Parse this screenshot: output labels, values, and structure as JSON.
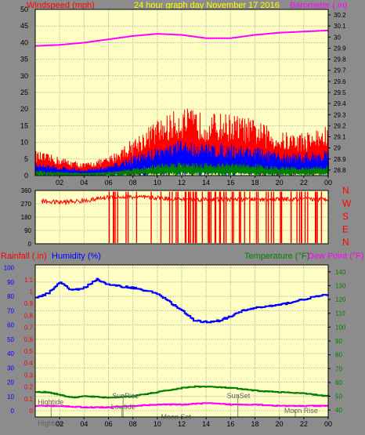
{
  "colors": {
    "background": "#8c8c8c",
    "plot_bg": "#ffffc4",
    "grid": "#b4b4b4",
    "windspeed": "#ff0000",
    "gust": "#0000ff",
    "wind_low": "#008000",
    "barometer": "#ff00ff",
    "wind_dir": "#ff0000",
    "humidity": "#0000ff",
    "temperature": "#008000",
    "dew_point": "#ff00ff",
    "header_title": "#ffff00"
  },
  "header": {
    "left_label": "Windspeed (mph)",
    "title": "24 hour graph day   November 17 2016",
    "right_label": "Barometer (.in)"
  },
  "panel3_header": {
    "rainfall_label": "Rainfall (.in)",
    "humidity_label": "Humidity (%)",
    "temperature_label": "Temperature (°F)",
    "dewpoint_label": "Dew Point (°F)"
  },
  "direction_letters": [
    "N",
    "W",
    "S",
    "E",
    "N"
  ],
  "x_ticks": [
    "02",
    "04",
    "06",
    "08",
    "10",
    "12",
    "14",
    "16",
    "18",
    "20",
    "22",
    "00"
  ],
  "events": {
    "hightide_1": "Hightide",
    "hightide_2": "Hightide",
    "sunrise": "SunRise",
    "lowtide": "Lowtide",
    "moonset": "Moon Set",
    "sunset": "SunSet",
    "moonrise": "Moon Rise"
  },
  "chart_data": [
    {
      "type": "line",
      "title": "24 hour graph day   November 17 2016",
      "x_range": [
        0,
        24
      ],
      "x_tick_labels": [
        "02",
        "04",
        "06",
        "08",
        "10",
        "12",
        "14",
        "16",
        "18",
        "20",
        "22",
        "00"
      ],
      "left_axis": {
        "label": "Windspeed (mph)",
        "range": [
          0,
          50
        ],
        "ticks": [
          0,
          5,
          10,
          15,
          20,
          25,
          30,
          35,
          40,
          45,
          50
        ]
      },
      "right_axis": {
        "label": "Barometer (.in)",
        "range": [
          28.75,
          30.25
        ],
        "ticks": [
          "28.8",
          "28.9",
          "29",
          "29.1",
          "29.2",
          "29.3",
          "29.4",
          "29.5",
          "29.6",
          "29.7",
          "29.8",
          "29.9",
          "30",
          "30.1",
          "30.2"
        ]
      },
      "series": [
        {
          "name": "Windspeed (mph)",
          "axis": "left",
          "color": "#ff0000",
          "x": [
            0,
            2,
            4,
            6,
            8,
            10,
            12,
            14,
            16,
            18,
            20,
            22,
            24
          ],
          "values": [
            4,
            3,
            2,
            3,
            6,
            9,
            11,
            10,
            10,
            9,
            7,
            7,
            8
          ]
        },
        {
          "name": "Barometer (.in)",
          "axis": "right",
          "color": "#ff00ff",
          "x": [
            0,
            2,
            4,
            6,
            8,
            10,
            12,
            14,
            16,
            18,
            20,
            22,
            24
          ],
          "values": [
            29.92,
            29.93,
            29.95,
            29.98,
            30.01,
            30.03,
            30.02,
            29.99,
            29.99,
            30.02,
            30.04,
            30.05,
            30.06
          ]
        }
      ],
      "grid": true
    },
    {
      "type": "scatter",
      "y_axis": {
        "range": [
          0,
          360
        ],
        "ticks": [
          0,
          45,
          90,
          135,
          180,
          225,
          270,
          315,
          360
        ]
      },
      "series": [
        {
          "name": "Wind direction",
          "color": "#ff0000",
          "x": [
            0,
            2,
            4,
            6,
            8,
            10,
            12,
            14,
            16,
            18,
            20,
            22,
            24
          ],
          "values": [
            290,
            280,
            290,
            315,
            315,
            310,
            300,
            300,
            300,
            300,
            300,
            300,
            300
          ]
        }
      ]
    },
    {
      "type": "line",
      "left_axis": {
        "label": "Humidity (%)",
        "range": [
          0,
          100
        ],
        "ticks": [
          0,
          10,
          20,
          30,
          40,
          50,
          60,
          70,
          80,
          90,
          100
        ]
      },
      "rain_axis": {
        "label": "Rainfall (.in)",
        "range": [
          0,
          1.2
        ],
        "ticks": [
          "0",
          "0.1",
          "0.2",
          "0.3",
          "0.4",
          "0.5",
          "0.6",
          "0.7",
          "0.8",
          "0.9",
          "1",
          "1.1"
        ]
      },
      "right_axis": {
        "label": "Temperature (°F)",
        "range": [
          35,
          145
        ],
        "ticks": [
          40,
          50,
          60,
          70,
          80,
          90,
          100,
          110,
          120,
          130,
          140
        ]
      },
      "series": [
        {
          "name": "Humidity (%)",
          "axis": "left",
          "color": "#0000ff",
          "x": [
            0,
            1,
            2,
            3,
            4,
            5,
            6,
            8,
            10,
            12,
            13,
            14,
            15,
            16,
            17,
            18,
            20,
            22,
            23,
            24
          ],
          "values": [
            79,
            82,
            90,
            84,
            86,
            92,
            88,
            86,
            82,
            70,
            63,
            62,
            63,
            66,
            70,
            72,
            74,
            78,
            80,
            81
          ]
        },
        {
          "name": "Temperature (°F)",
          "axis": "right",
          "color": "#008000",
          "x": [
            0,
            1,
            2,
            3,
            4,
            6,
            8,
            10,
            12,
            13,
            14,
            16,
            18,
            20,
            22,
            24
          ],
          "values": [
            53,
            53,
            51,
            49,
            50,
            49,
            50,
            53,
            56,
            57,
            57,
            56,
            54,
            53,
            52,
            50
          ]
        },
        {
          "name": "Dew Point (°F)",
          "axis": "right",
          "color": "#ff00ff",
          "x": [
            0,
            2,
            4,
            6,
            8,
            10,
            12,
            14,
            16,
            18,
            20,
            22,
            24
          ],
          "values": [
            43,
            43,
            42,
            42,
            43,
            44,
            44,
            45,
            44,
            44,
            43,
            43,
            43
          ]
        }
      ]
    }
  ]
}
